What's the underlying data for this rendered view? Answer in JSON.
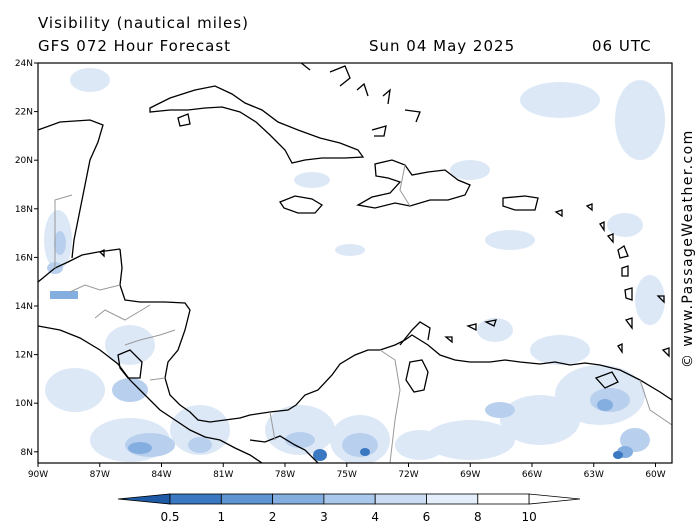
{
  "header": {
    "title": "Visibility (nautical miles)",
    "model": "GFS 072 Hour Forecast",
    "date": "Sun 04 May 2025",
    "time": "06 UTC"
  },
  "credit": "© www.PassageWeather.com",
  "map": {
    "lat_labels": [
      "24N",
      "22N",
      "20N",
      "18N",
      "16N",
      "14N",
      "12N",
      "10N",
      "8N"
    ],
    "lon_labels": [
      "90W",
      "87W",
      "84W",
      "81W",
      "78W",
      "75W",
      "72W",
      "69W",
      "66W",
      "63W",
      "60W"
    ]
  },
  "legend": {
    "labels": [
      "0.5",
      "1",
      "2",
      "3",
      "4",
      "6",
      "8",
      "10"
    ],
    "colors": [
      "#1f5aa6",
      "#3a78c2",
      "#5e94d1",
      "#84aee0",
      "#a9c8ec",
      "#cbdcf4",
      "#e4eefa",
      "#ffffff"
    ]
  }
}
